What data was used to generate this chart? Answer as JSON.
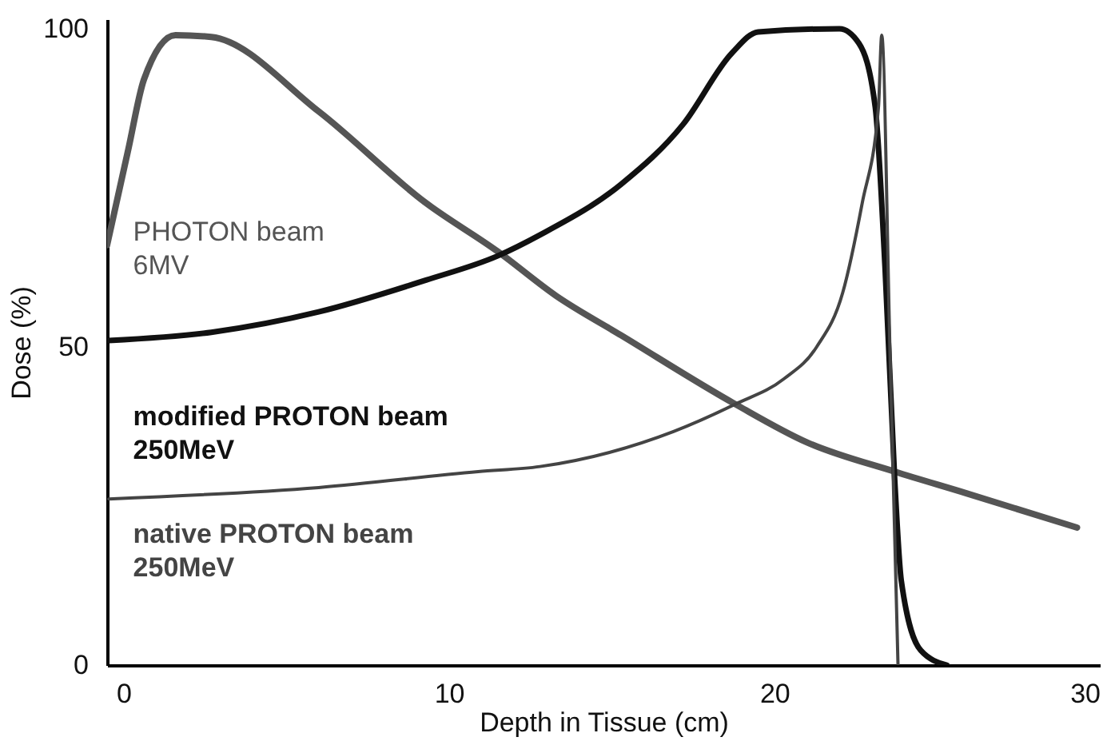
{
  "chart_data": {
    "type": "line",
    "xlabel": "Depth in Tissue (cm)",
    "ylabel": "Dose (%)",
    "xlim": [
      -0.5,
      30
    ],
    "ylim": [
      0,
      101.5
    ],
    "xticks": [
      0,
      10,
      20,
      30
    ],
    "yticks": [
      0,
      50,
      100
    ],
    "grid": false,
    "marker": "none",
    "line_style": "solid",
    "series": [
      {
        "name": "PHOTON beam\n6MV",
        "color": "#555555",
        "x": [
          -0.5,
          0.15,
          0.63,
          1.6,
          2.7,
          6,
          9.3,
          11.5,
          13.3,
          15.3,
          18.8,
          21,
          23.7,
          25.9,
          29.3
        ],
        "values": [
          66,
          81,
          92,
          99,
          98.7,
          87,
          72.6,
          65,
          58,
          51.8,
          41,
          35,
          30.4,
          27,
          21.6
        ]
      },
      {
        "name": "modified PROTON beam\n250MeV",
        "color": "#111111",
        "x": [
          -0.45,
          2.7,
          6,
          9.3,
          11.5,
          12.8,
          15.3,
          17.2,
          18.7,
          19.5,
          22,
          22.6,
          23.1,
          23.4,
          23.7,
          23.9,
          24.5,
          25.3
        ],
        "values": [
          51,
          52.3,
          55.5,
          60.5,
          64.3,
          67.6,
          75.6,
          85,
          96.2,
          99.5,
          100,
          97.7,
          87.7,
          62.6,
          29,
          13.3,
          2.3,
          0
        ]
      },
      {
        "name": "native PROTON beam\n250MeV",
        "color": "#444444",
        "x": [
          -0.45,
          6,
          10.9,
          12.8,
          16.9,
          18.8,
          20.3,
          21.3,
          22.1,
          22.7,
          23.2,
          23.3,
          23.55,
          23.8
        ],
        "values": [
          26.1,
          27.9,
          30.4,
          31.2,
          36.7,
          41,
          45,
          50,
          58.5,
          72.6,
          87.7,
          99,
          50,
          0
        ]
      }
    ]
  }
}
